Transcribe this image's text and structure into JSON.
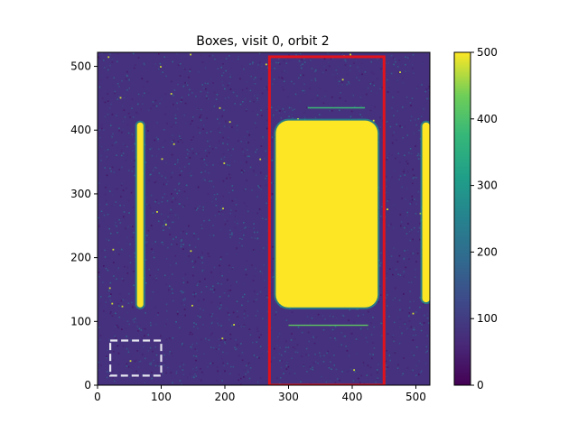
{
  "chart_data": {
    "type": "heatmap",
    "title": "Boxes, visit 0, orbit 2",
    "xlabel": "",
    "ylabel": "",
    "xlim": [
      0,
      522
    ],
    "ylim": [
      0,
      522
    ],
    "xticks": [
      0,
      100,
      200,
      300,
      400,
      500
    ],
    "yticks": [
      0,
      100,
      200,
      300,
      400,
      500
    ],
    "colorbar": {
      "min": 0,
      "max": 500,
      "ticks": [
        0,
        100,
        200,
        300,
        400,
        500
      ],
      "colormap": "viridis"
    },
    "background_level": 80,
    "sources": [
      {
        "kind": "vertical-streak",
        "x": [
          62,
          72
        ],
        "y": [
          122,
          412
        ],
        "value": 500
      },
      {
        "kind": "bright-rectangle",
        "x": [
          280,
          440
        ],
        "y": [
          122,
          415
        ],
        "value": 500
      },
      {
        "kind": "vertical-streak",
        "x": [
          510,
          522
        ],
        "y": [
          130,
          412
        ],
        "value": 500
      },
      {
        "kind": "thin-line",
        "x": [
          300,
          425
        ],
        "y": [
          94,
          94
        ],
        "value": 420
      },
      {
        "kind": "thin-line",
        "x": [
          330,
          420
        ],
        "y": [
          435,
          435
        ],
        "value": 380
      }
    ],
    "annotations": [
      {
        "kind": "box",
        "style": "solid",
        "color": "#e2121c",
        "x": [
          270,
          450
        ],
        "y": [
          0,
          515
        ]
      },
      {
        "kind": "box",
        "style": "dashed",
        "color": "#e6e6f0",
        "x": [
          20,
          100
        ],
        "y": [
          15,
          70
        ]
      }
    ]
  }
}
